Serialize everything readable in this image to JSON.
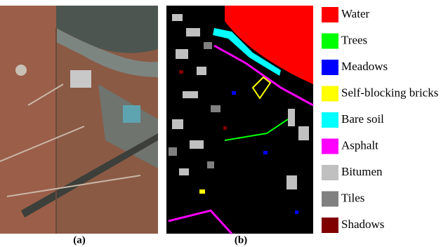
{
  "figure": {
    "captions": [
      "(a)",
      "(b)"
    ],
    "legend": [
      {
        "label": "Water",
        "color": "#ff0000"
      },
      {
        "label": "Trees",
        "color": "#00ff00"
      },
      {
        "label": "Meadows",
        "color": "#0000ff"
      },
      {
        "label": "Self-blocking bricks",
        "color": "#ffff00"
      },
      {
        "label": "Bare soil",
        "color": "#00ffff"
      },
      {
        "label": "Asphalt",
        "color": "#ff00ff"
      },
      {
        "label": "Bitumen",
        "color": "#c0c0c0"
      },
      {
        "label": "Tiles",
        "color": "#808080"
      },
      {
        "label": "Shadows",
        "color": "#800000"
      }
    ]
  }
}
